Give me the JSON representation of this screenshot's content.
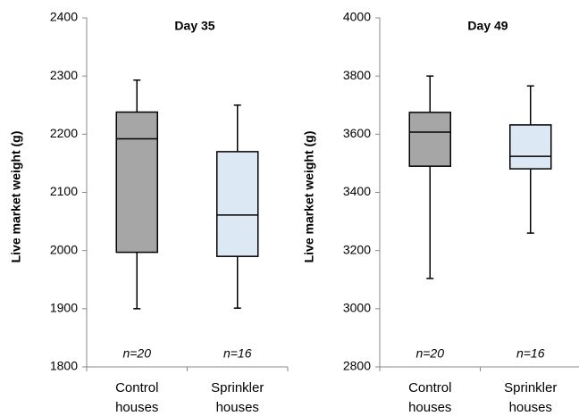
{
  "chart_data": [
    {
      "type": "box",
      "title": "Day 35",
      "y_label": "Live market weight (g)",
      "categories": [
        "Control houses",
        "Sprinkler houses"
      ],
      "annotations": [
        "n=20",
        "n=16"
      ],
      "boxes": [
        {
          "min": 1900,
          "q1": 1997,
          "median": 2192,
          "q3": 2238,
          "max": 2293,
          "color": "#a6a6a6"
        },
        {
          "min": 1901,
          "q1": 1990,
          "median": 2061,
          "q3": 2170,
          "max": 2250,
          "color": "#dce9f5"
        }
      ],
      "ylim": [
        1800,
        2400
      ],
      "yticks": [
        1800,
        1900,
        2000,
        2100,
        2200,
        2300,
        2400
      ]
    },
    {
      "type": "box",
      "title": "Day 49",
      "y_label": "Live market weight (g)",
      "categories": [
        "Control houses",
        "Sprinkler houses"
      ],
      "annotations": [
        "n=20",
        "n=16"
      ],
      "boxes": [
        {
          "min": 3104,
          "q1": 3490,
          "median": 3607,
          "q3": 3675,
          "max": 3800,
          "color": "#a6a6a6"
        },
        {
          "min": 3260,
          "q1": 3481,
          "median": 3524,
          "q3": 3632,
          "max": 3766,
          "color": "#dce9f5"
        }
      ],
      "ylim": [
        2800,
        4000
      ],
      "yticks": [
        2800,
        3000,
        3200,
        3400,
        3600,
        3800,
        4000
      ]
    }
  ]
}
